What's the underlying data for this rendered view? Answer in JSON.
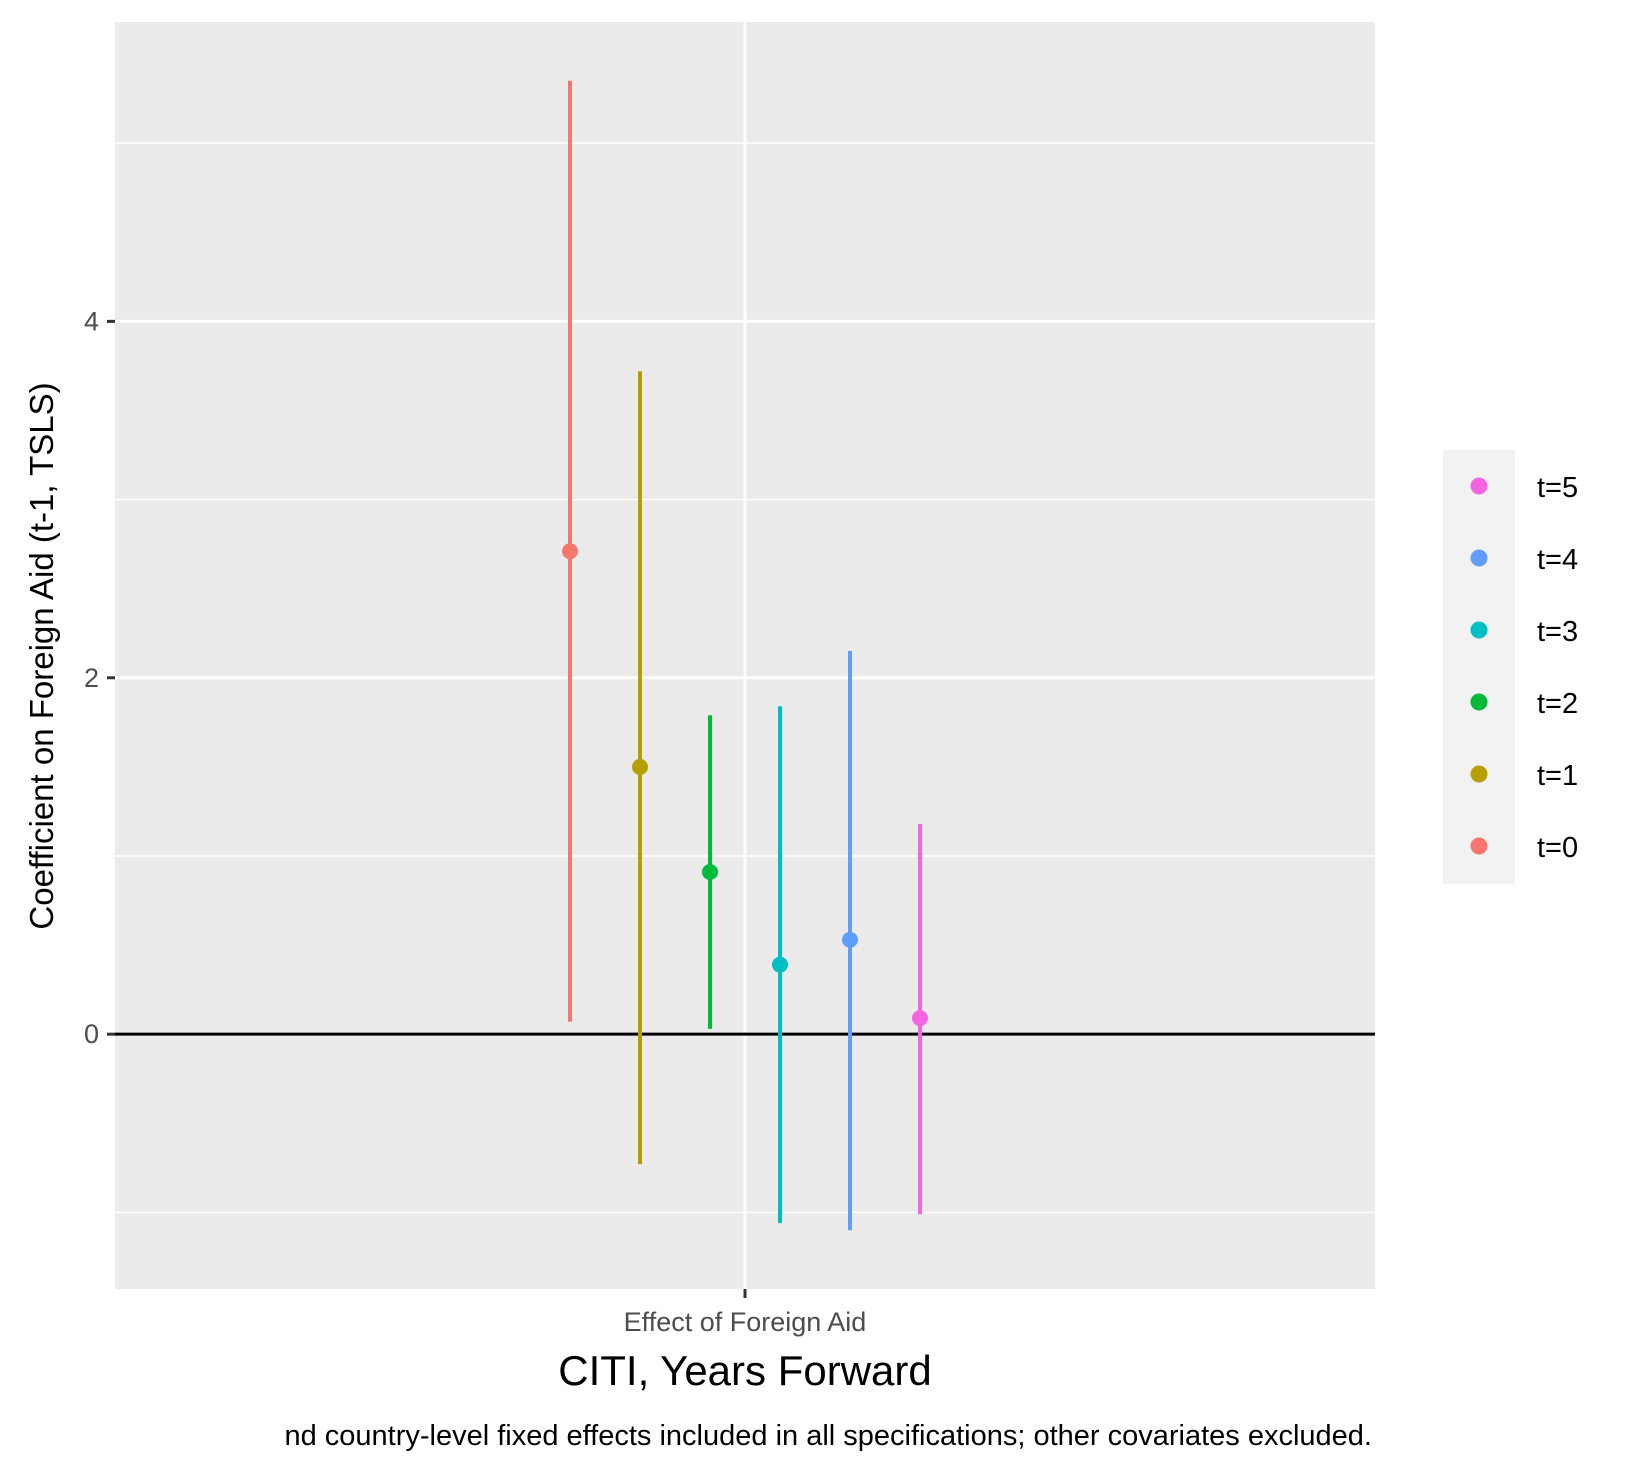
{
  "chart_data": {
    "type": "scatter",
    "subtype": "point-range (coefficient estimates with confidence intervals)",
    "categories": [
      "Effect of Foreign Aid"
    ],
    "xlabel": "CITI, Years Forward",
    "ylabel": "Coefficient on Foreign Aid (t-1, TSLS)",
    "caption": "nd country-level fixed effects included in all specifications; other covariates excluded.",
    "ylim": [
      -1.43,
      5.68
    ],
    "yticks": [
      0,
      2,
      4
    ],
    "grid": true,
    "reference_line_y": 0,
    "legend_position": "right",
    "series": [
      {
        "name": "t=0",
        "color": "#F8766D",
        "estimate": 2.71,
        "lower": 0.07,
        "upper": 5.35
      },
      {
        "name": "t=1",
        "color": "#B79F00",
        "estimate": 1.5,
        "lower": -0.73,
        "upper": 3.72
      },
      {
        "name": "t=2",
        "color": "#00BA38",
        "estimate": 0.91,
        "lower": 0.03,
        "upper": 1.79
      },
      {
        "name": "t=3",
        "color": "#00BFC4",
        "estimate": 0.39,
        "lower": -1.06,
        "upper": 1.84
      },
      {
        "name": "t=4",
        "color": "#619CFF",
        "estimate": 0.53,
        "lower": -1.1,
        "upper": 2.15
      },
      {
        "name": "t=5",
        "color": "#F564E3",
        "estimate": 0.09,
        "lower": -1.01,
        "upper": 1.18
      }
    ],
    "legend_order": [
      "t=5",
      "t=4",
      "t=3",
      "t=2",
      "t=1",
      "t=0"
    ]
  }
}
